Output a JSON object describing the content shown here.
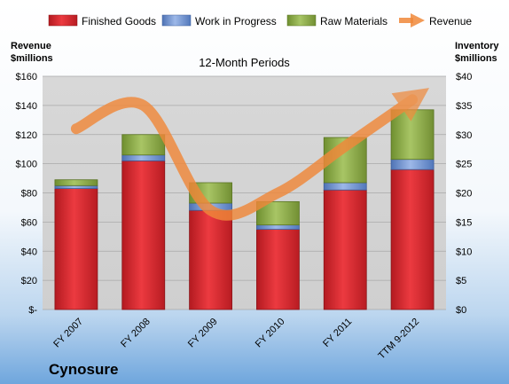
{
  "company": "Cynosure",
  "chart_data": {
    "type": "bar",
    "subtitle": "12-Month Periods",
    "categories": [
      "FY 2007",
      "FY 2008",
      "FY 2009",
      "FY 2010",
      "FY 2011",
      "TTM 9-2012"
    ],
    "series": [
      {
        "name": "Finished Goods",
        "type": "bar",
        "axis": "left",
        "color": "#e0262e",
        "values": [
          83,
          102,
          68,
          55,
          82,
          96
        ]
      },
      {
        "name": "Work in Progress",
        "type": "bar",
        "axis": "left",
        "color": "#6d93d5",
        "values": [
          2,
          4,
          5,
          3,
          5,
          7
        ]
      },
      {
        "name": "Raw Materials",
        "type": "bar",
        "axis": "left",
        "color": "#8fb04a",
        "values": [
          4,
          14,
          14,
          16,
          31,
          34
        ]
      },
      {
        "name": "Revenue",
        "type": "line",
        "axis": "right",
        "color": "#f0883a",
        "values": [
          31,
          35,
          17,
          20,
          28,
          36
        ]
      }
    ],
    "y_left": {
      "label_line1": "Revenue",
      "label_line2": "$millions",
      "min": 0,
      "max": 160,
      "step": 20,
      "tick_labels": [
        "$-",
        "$20",
        "$40",
        "$60",
        "$80",
        "$100",
        "$120",
        "$140",
        "$160"
      ]
    },
    "y_right": {
      "label_line1": "Inventory",
      "label_line2": "$millions",
      "min": 0,
      "max": 40,
      "step": 5,
      "tick_labels": [
        "$0",
        "$5",
        "$10",
        "$15",
        "$20",
        "$25",
        "$30",
        "$35",
        "$40"
      ]
    },
    "grid": true,
    "legend": "top"
  }
}
